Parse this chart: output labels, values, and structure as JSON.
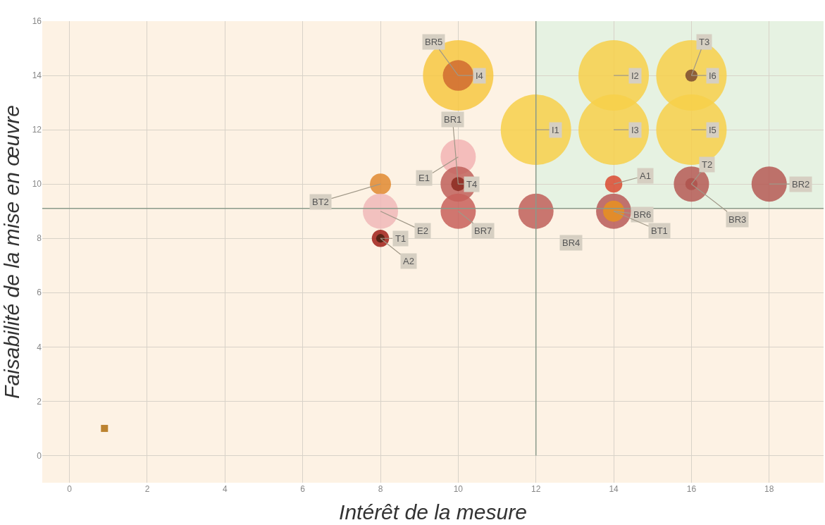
{
  "chart_data": {
    "type": "bubble",
    "xlabel": "Intérêt de la mesure",
    "ylabel": "Faisabilité de la mise en œuvre",
    "xlim": [
      -0.7,
      19.4
    ],
    "ylim": [
      -1,
      16
    ],
    "xticks": [
      0,
      2,
      4,
      6,
      8,
      10,
      12,
      14,
      16,
      18
    ],
    "yticks": [
      0,
      2,
      4,
      6,
      8,
      10,
      12,
      14,
      16
    ],
    "grid": true,
    "legend": false,
    "ref_lines": [
      {
        "axis": "x",
        "value": 12,
        "color": "#8a9a8a"
      },
      {
        "axis": "y",
        "value": 9.1,
        "color": "#8a9a8a"
      }
    ],
    "bands": [
      {
        "axis": "x",
        "from": 12,
        "to": 19.4,
        "color": "#e6f2e2"
      }
    ],
    "series": [
      {
        "name": "I4",
        "color": "#f7c842",
        "x": [
          10
        ],
        "values": [
          14
        ],
        "sizes": [
          1
        ]
      },
      {
        "name": "BR5",
        "color": "#d06a30",
        "x": [
          10
        ],
        "values": [
          14
        ],
        "sizes": [
          0.19
        ]
      },
      {
        "name": "I2",
        "color": "#f7d04a",
        "x": [
          14
        ],
        "values": [
          14
        ],
        "sizes": [
          1
        ]
      },
      {
        "name": "I6",
        "color": "#f7d04a",
        "x": [
          16
        ],
        "values": [
          14
        ],
        "sizes": [
          1
        ]
      },
      {
        "name": "T3",
        "color": "#7a4a30",
        "x": [
          16
        ],
        "values": [
          14
        ],
        "sizes": [
          0.03
        ]
      },
      {
        "name": "I1",
        "color": "#f7d04a",
        "x": [
          12
        ],
        "values": [
          12
        ],
        "sizes": [
          1
        ]
      },
      {
        "name": "I3",
        "color": "#f7d04a",
        "x": [
          14
        ],
        "values": [
          12
        ],
        "sizes": [
          1
        ]
      },
      {
        "name": "I5",
        "color": "#f7d04a",
        "x": [
          16
        ],
        "values": [
          12
        ],
        "sizes": [
          1
        ]
      },
      {
        "name": "E1",
        "color": "#f2b4b4",
        "x": [
          10
        ],
        "values": [
          11
        ],
        "sizes": [
          0.25
        ]
      },
      {
        "name": "BR1",
        "color": "#c0605a",
        "x": [
          10
        ],
        "values": [
          10
        ],
        "sizes": [
          0.25
        ]
      },
      {
        "name": "T4",
        "color": "#8b2a20",
        "x": [
          10
        ],
        "values": [
          10
        ],
        "sizes": [
          0.04
        ]
      },
      {
        "name": "A1",
        "color": "#d94a30",
        "x": [
          14
        ],
        "values": [
          10
        ],
        "sizes": [
          0.06
        ]
      },
      {
        "name": "T2",
        "color": "#8b2a20",
        "x": [
          16
        ],
        "values": [
          10
        ],
        "sizes": [
          0.03
        ]
      },
      {
        "name": "BR3",
        "color": "#b55a55",
        "x": [
          16
        ],
        "values": [
          10
        ],
        "sizes": [
          0.25
        ]
      },
      {
        "name": "BR2",
        "color": "#b55a55",
        "x": [
          18
        ],
        "values": [
          10
        ],
        "sizes": [
          0.25
        ]
      },
      {
        "name": "BT2",
        "color": "#e08a30",
        "x": [
          8
        ],
        "values": [
          10
        ],
        "sizes": [
          0.09
        ]
      },
      {
        "name": "E2",
        "color": "#f0b8b8",
        "x": [
          8
        ],
        "values": [
          9
        ],
        "sizes": [
          0.25
        ]
      },
      {
        "name": "BR7",
        "color": "#c8605a",
        "x": [
          10
        ],
        "values": [
          9
        ],
        "sizes": [
          0.25
        ]
      },
      {
        "name": "BR4",
        "color": "#c0605a",
        "x": [
          12
        ],
        "values": [
          9
        ],
        "sizes": [
          0.25
        ]
      },
      {
        "name": "BR6",
        "color": "#b95a58",
        "x": [
          14
        ],
        "values": [
          9
        ],
        "sizes": [
          0.25
        ]
      },
      {
        "name": "BT1",
        "color": "#e89020",
        "x": [
          14
        ],
        "values": [
          9
        ],
        "sizes": [
          0.09
        ]
      },
      {
        "name": "T1",
        "color": "#a02018",
        "x": [
          8
        ],
        "values": [
          8
        ],
        "sizes": [
          0.06
        ]
      },
      {
        "name": "A2",
        "color": "#4a2010",
        "x": [
          8
        ],
        "values": [
          8
        ],
        "sizes": [
          0.015
        ]
      },
      {
        "color": "#b07010",
        "x": [
          0.9
        ],
        "values": [
          1
        ],
        "sizes": [
          0.01
        ],
        "marker": "square"
      }
    ]
  }
}
